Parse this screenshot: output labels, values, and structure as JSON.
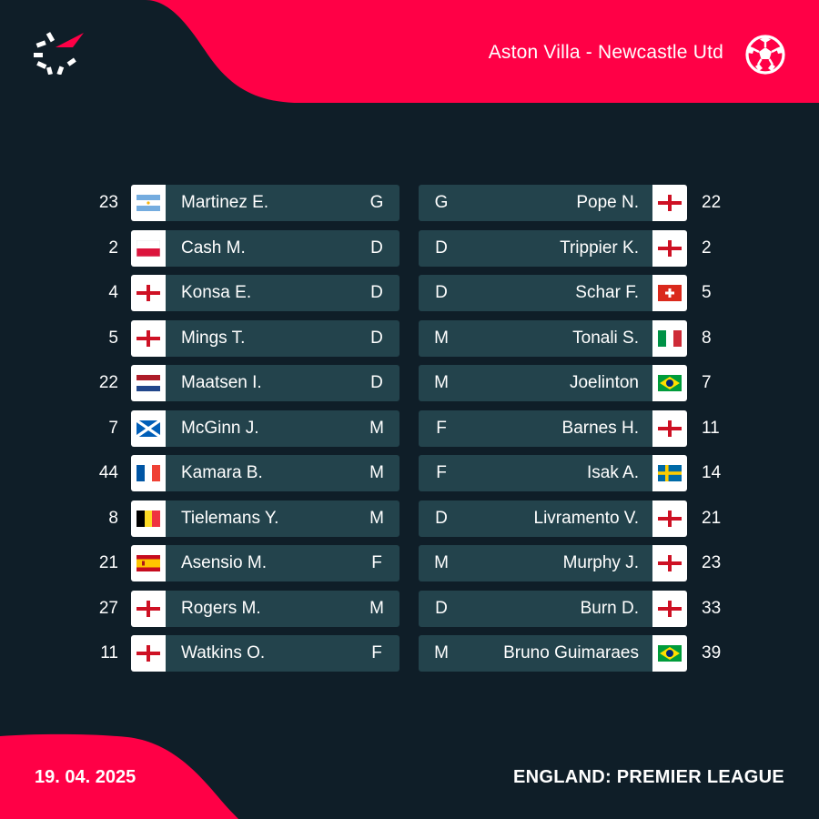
{
  "header": {
    "match_title": "Aston Villa - Newcastle Utd",
    "logo_icon": "flashscore-logo-icon",
    "sport_icon": "football-icon",
    "accent_color": "#ff0046"
  },
  "footer": {
    "date": "19. 04. 2025",
    "competition": "ENGLAND: PREMIER LEAGUE"
  },
  "home_lineup": [
    {
      "number": "23",
      "name": "Martinez E.",
      "position": "G",
      "flag": "argentina-flag-icon"
    },
    {
      "number": "2",
      "name": "Cash M.",
      "position": "D",
      "flag": "poland-flag-icon"
    },
    {
      "number": "4",
      "name": "Konsa E.",
      "position": "D",
      "flag": "england-flag-icon"
    },
    {
      "number": "5",
      "name": "Mings T.",
      "position": "D",
      "flag": "england-flag-icon"
    },
    {
      "number": "22",
      "name": "Maatsen I.",
      "position": "D",
      "flag": "netherlands-flag-icon"
    },
    {
      "number": "7",
      "name": "McGinn J.",
      "position": "M",
      "flag": "scotland-flag-icon"
    },
    {
      "number": "44",
      "name": "Kamara B.",
      "position": "M",
      "flag": "france-flag-icon"
    },
    {
      "number": "8",
      "name": "Tielemans Y.",
      "position": "M",
      "flag": "belgium-flag-icon"
    },
    {
      "number": "21",
      "name": "Asensio M.",
      "position": "F",
      "flag": "spain-flag-icon"
    },
    {
      "number": "27",
      "name": "Rogers M.",
      "position": "M",
      "flag": "england-flag-icon"
    },
    {
      "number": "11",
      "name": "Watkins O.",
      "position": "F",
      "flag": "england-flag-icon"
    }
  ],
  "away_lineup": [
    {
      "number": "22",
      "name": "Pope N.",
      "position": "G",
      "flag": "england-flag-icon"
    },
    {
      "number": "2",
      "name": "Trippier K.",
      "position": "D",
      "flag": "england-flag-icon"
    },
    {
      "number": "5",
      "name": "Schar F.",
      "position": "D",
      "flag": "switzerland-flag-icon"
    },
    {
      "number": "8",
      "name": "Tonali S.",
      "position": "M",
      "flag": "italy-flag-icon"
    },
    {
      "number": "7",
      "name": "Joelinton",
      "position": "M",
      "flag": "brazil-flag-icon"
    },
    {
      "number": "11",
      "name": "Barnes H.",
      "position": "F",
      "flag": "england-flag-icon"
    },
    {
      "number": "14",
      "name": "Isak A.",
      "position": "F",
      "flag": "sweden-flag-icon"
    },
    {
      "number": "21",
      "name": "Livramento V.",
      "position": "D",
      "flag": "england-flag-icon"
    },
    {
      "number": "23",
      "name": "Murphy J.",
      "position": "M",
      "flag": "england-flag-icon"
    },
    {
      "number": "33",
      "name": "Burn D.",
      "position": "D",
      "flag": "england-flag-icon"
    },
    {
      "number": "39",
      "name": "Bruno Guimaraes",
      "position": "M",
      "flag": "brazil-flag-icon"
    }
  ]
}
